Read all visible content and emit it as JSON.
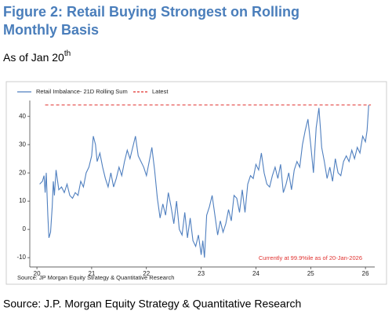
{
  "chart_data": {
    "type": "line",
    "title_line1": "Figure 2: Retail Buying Strongest on Rolling",
    "title_line2": "Monthly Basis",
    "subtitle": "As of Jan 20",
    "subtitle_sup": "th",
    "annotation": "Currently at 99.9%ile as of 20-Jan-2026",
    "inner_source": "Source: JP Morgan Equity Strategy & Quantitative Research",
    "source": "Source: J.P. Morgan Equity Strategy & Quantitative Research",
    "xlim": [
      19.87,
      26.17
    ],
    "ylim": [
      -13.3,
      45.6
    ],
    "xticks": [
      20,
      21,
      22,
      23,
      24,
      25,
      26
    ],
    "yticks": [
      -10,
      0,
      10,
      20,
      30,
      40
    ],
    "series": [
      {
        "name": "Retail Imbalance- 21D Rolling Sum",
        "color": "#4f7fbf",
        "linestyle": "solid",
        "x": [
          20.05,
          20.1,
          20.13,
          20.15,
          20.17,
          20.2,
          20.22,
          20.25,
          20.28,
          20.3,
          20.32,
          20.35,
          20.4,
          20.45,
          20.5,
          20.55,
          20.6,
          20.65,
          20.7,
          20.75,
          20.8,
          20.85,
          20.9,
          20.95,
          21.0,
          21.03,
          21.07,
          21.1,
          21.15,
          21.2,
          21.25,
          21.3,
          21.35,
          21.4,
          21.45,
          21.5,
          21.55,
          21.6,
          21.65,
          21.7,
          21.75,
          21.8,
          21.85,
          21.9,
          21.95,
          22.0,
          22.05,
          22.1,
          22.15,
          22.2,
          22.25,
          22.3,
          22.35,
          22.4,
          22.45,
          22.5,
          22.55,
          22.6,
          22.65,
          22.7,
          22.75,
          22.8,
          22.85,
          22.9,
          22.95,
          23.0,
          23.03,
          23.06,
          23.1,
          23.15,
          23.2,
          23.25,
          23.3,
          23.35,
          23.4,
          23.45,
          23.5,
          23.55,
          23.6,
          23.65,
          23.7,
          23.75,
          23.8,
          23.85,
          23.9,
          23.95,
          24.0,
          24.05,
          24.1,
          24.15,
          24.2,
          24.25,
          24.3,
          24.35,
          24.4,
          24.45,
          24.5,
          24.55,
          24.6,
          24.65,
          24.7,
          24.75,
          24.8,
          24.85,
          24.9,
          24.95,
          25.0,
          25.05,
          25.1,
          25.15,
          25.18,
          25.2,
          25.25,
          25.3,
          25.35,
          25.4,
          25.45,
          25.5,
          25.55,
          25.6,
          25.65,
          25.7,
          25.75,
          25.8,
          25.85,
          25.9,
          25.95,
          26.0,
          26.03,
          26.06
        ],
        "values": [
          16,
          17,
          19,
          13,
          20,
          5,
          -3,
          -1,
          8,
          17,
          12,
          21,
          14,
          15,
          13,
          16,
          12,
          11,
          13,
          12,
          17,
          15,
          20,
          22,
          26,
          33,
          30,
          24,
          27,
          22,
          18,
          15,
          20,
          15,
          18,
          22,
          19,
          24,
          28,
          25,
          29,
          33,
          26,
          24,
          22,
          19,
          24,
          29,
          21,
          11,
          4,
          9,
          5,
          13,
          8,
          2,
          10,
          0,
          -2,
          6,
          -3,
          4,
          -4,
          -6,
          -2,
          -9,
          -4,
          -10,
          5,
          8,
          12,
          5,
          -2,
          3,
          -1,
          2,
          7,
          3,
          12,
          11,
          6,
          14,
          6,
          16,
          19,
          18,
          23,
          21,
          27,
          20,
          16,
          15,
          19,
          22,
          18,
          23,
          13,
          16,
          20,
          14,
          21,
          24,
          22,
          30,
          35,
          39,
          30,
          20,
          36,
          43,
          35,
          29,
          24,
          18,
          22,
          17,
          25,
          20,
          19,
          24,
          26,
          24,
          28,
          25,
          29,
          27,
          33,
          31,
          35,
          44
        ]
      },
      {
        "name": "Latest",
        "color": "#e0312f",
        "linestyle": "dashed",
        "x": [
          20.15,
          26.1
        ],
        "values": [
          44,
          44
        ]
      }
    ]
  }
}
